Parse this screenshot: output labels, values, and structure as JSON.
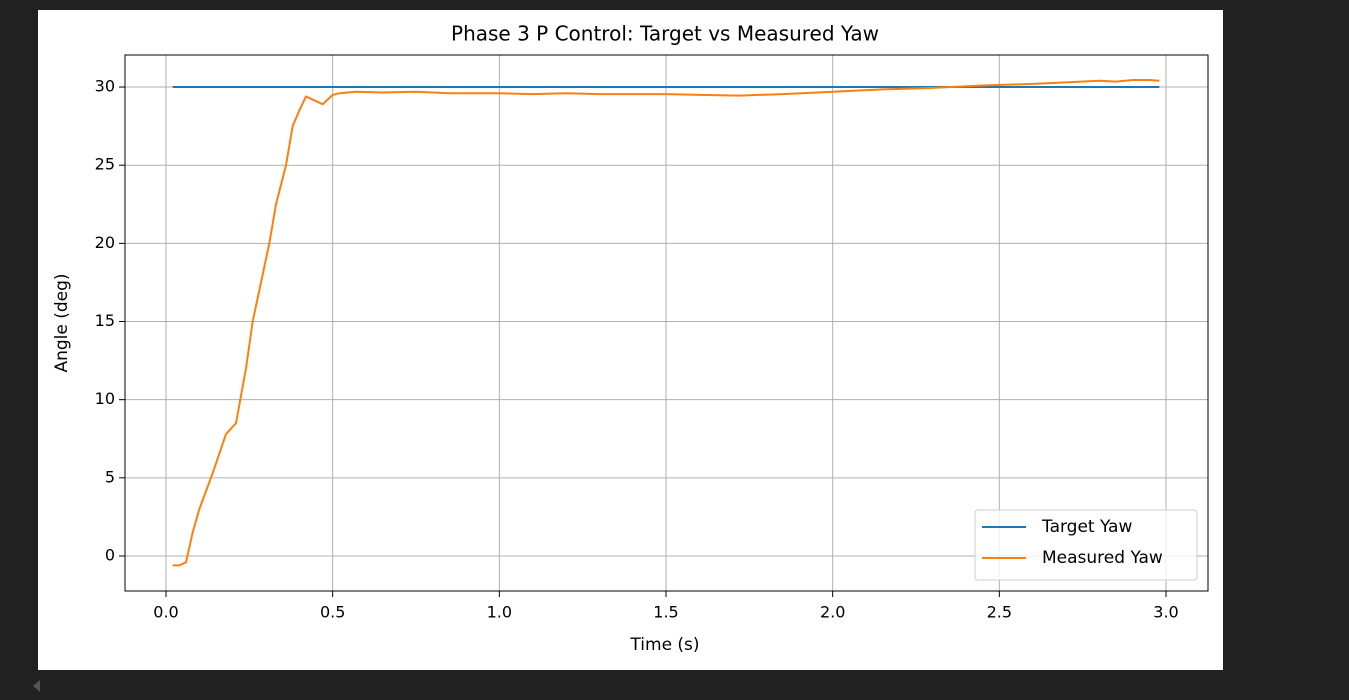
{
  "chart_data": {
    "type": "line",
    "title": "Phase 3 P Control: Target vs Measured Yaw",
    "xlabel": "Time (s)",
    "ylabel": "Angle (deg)",
    "x": [
      0.02,
      0.04,
      0.06,
      0.08,
      0.1,
      0.14,
      0.18,
      0.21,
      0.24,
      0.26,
      0.28,
      0.31,
      0.33,
      0.36,
      0.38,
      0.4,
      0.42,
      0.44,
      0.47,
      0.5,
      0.52,
      0.57,
      0.65,
      0.75,
      0.85,
      1.0,
      1.1,
      1.2,
      1.3,
      1.4,
      1.5,
      1.6,
      1.72,
      1.85,
      2.0,
      2.15,
      2.3,
      2.45,
      2.6,
      2.7,
      2.8,
      2.85,
      2.9,
      2.95,
      2.98
    ],
    "series": [
      {
        "name": "Target Yaw",
        "color": "#1f77b4",
        "values": [
          30,
          30,
          30,
          30,
          30,
          30,
          30,
          30,
          30,
          30,
          30,
          30,
          30,
          30,
          30,
          30,
          30,
          30,
          30,
          30,
          30,
          30,
          30,
          30,
          30,
          30,
          30,
          30,
          30,
          30,
          30,
          30,
          30,
          30,
          30,
          30,
          30,
          30,
          30,
          30,
          30,
          30,
          30,
          30,
          30
        ]
      },
      {
        "name": "Measured Yaw",
        "color": "#ff7f0e",
        "values": [
          -0.6,
          -0.6,
          -0.4,
          1.5,
          3.0,
          5.3,
          7.8,
          8.5,
          12.0,
          15.0,
          17.0,
          20.0,
          22.5,
          25.0,
          27.5,
          28.5,
          29.4,
          29.2,
          28.9,
          29.5,
          29.6,
          29.7,
          29.65,
          29.7,
          29.6,
          29.6,
          29.55,
          29.6,
          29.55,
          29.55,
          29.55,
          29.5,
          29.45,
          29.55,
          29.7,
          29.85,
          29.95,
          30.1,
          30.2,
          30.3,
          30.4,
          30.35,
          30.45,
          30.45,
          30.4
        ]
      }
    ],
    "xlim": [
      -0.123,
      3.126
    ],
    "ylim": [
      -2.24,
      32.05
    ],
    "xticks": [
      {
        "value": 0,
        "label": "0.0"
      },
      0.5,
      {
        "value": 1,
        "label": "1.0"
      },
      1.5,
      {
        "value": 2,
        "label": "2.0"
      },
      2.5,
      {
        "value": 3,
        "label": "3.0"
      }
    ],
    "yticks": [
      0,
      5,
      10,
      15,
      20,
      25,
      30
    ],
    "grid": true,
    "legend": "lower right"
  }
}
